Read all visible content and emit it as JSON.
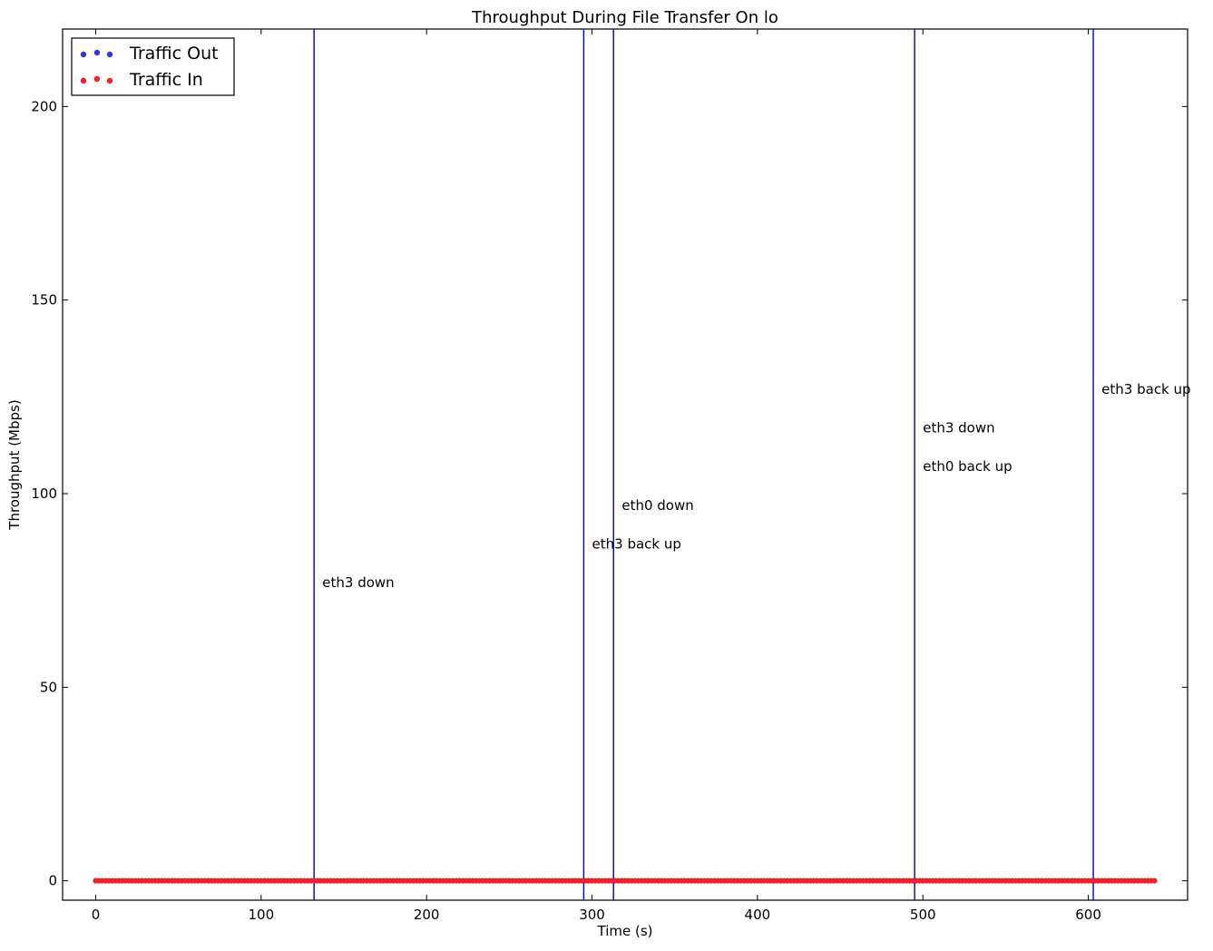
{
  "chart_data": {
    "type": "scatter",
    "title": "Throughput During File Transfer On lo",
    "xlabel": "Time (s)",
    "ylabel": "Throughput (Mbps)",
    "xlim": [
      -20,
      660
    ],
    "ylim": [
      -5,
      220
    ],
    "x_ticks": [
      0,
      100,
      200,
      300,
      400,
      500,
      600
    ],
    "y_ticks": [
      0,
      50,
      100,
      150,
      200
    ],
    "grid": false,
    "legend_position": "top-left",
    "series": [
      {
        "name": "Traffic Out",
        "color": "#3333ee",
        "marker": "dot",
        "x_start": 0,
        "x_end": 640,
        "x_step": 2,
        "y_value": 0
      },
      {
        "name": "Traffic In",
        "color": "#ee2222",
        "marker": "dot",
        "x_start": 0,
        "x_end": 640,
        "x_step": 2,
        "y_value": 0
      }
    ],
    "vertical_lines": [
      {
        "x": 132,
        "color": "#0000cc"
      },
      {
        "x": 295,
        "color": "#0000cc"
      },
      {
        "x": 313,
        "color": "#0000cc"
      },
      {
        "x": 495,
        "color": "#0000cc"
      },
      {
        "x": 603,
        "color": "#0000cc"
      }
    ],
    "annotations": [
      {
        "text": "eth3 down",
        "x": 137,
        "y": 77
      },
      {
        "text": "eth3 back up",
        "x": 300,
        "y": 87
      },
      {
        "text": "eth0 down",
        "x": 318,
        "y": 97
      },
      {
        "text": "eth0 back up",
        "x": 500,
        "y": 107
      },
      {
        "text": "eth3 down",
        "x": 500,
        "y": 117
      },
      {
        "text": "eth3 back up",
        "x": 608,
        "y": 127
      }
    ]
  }
}
